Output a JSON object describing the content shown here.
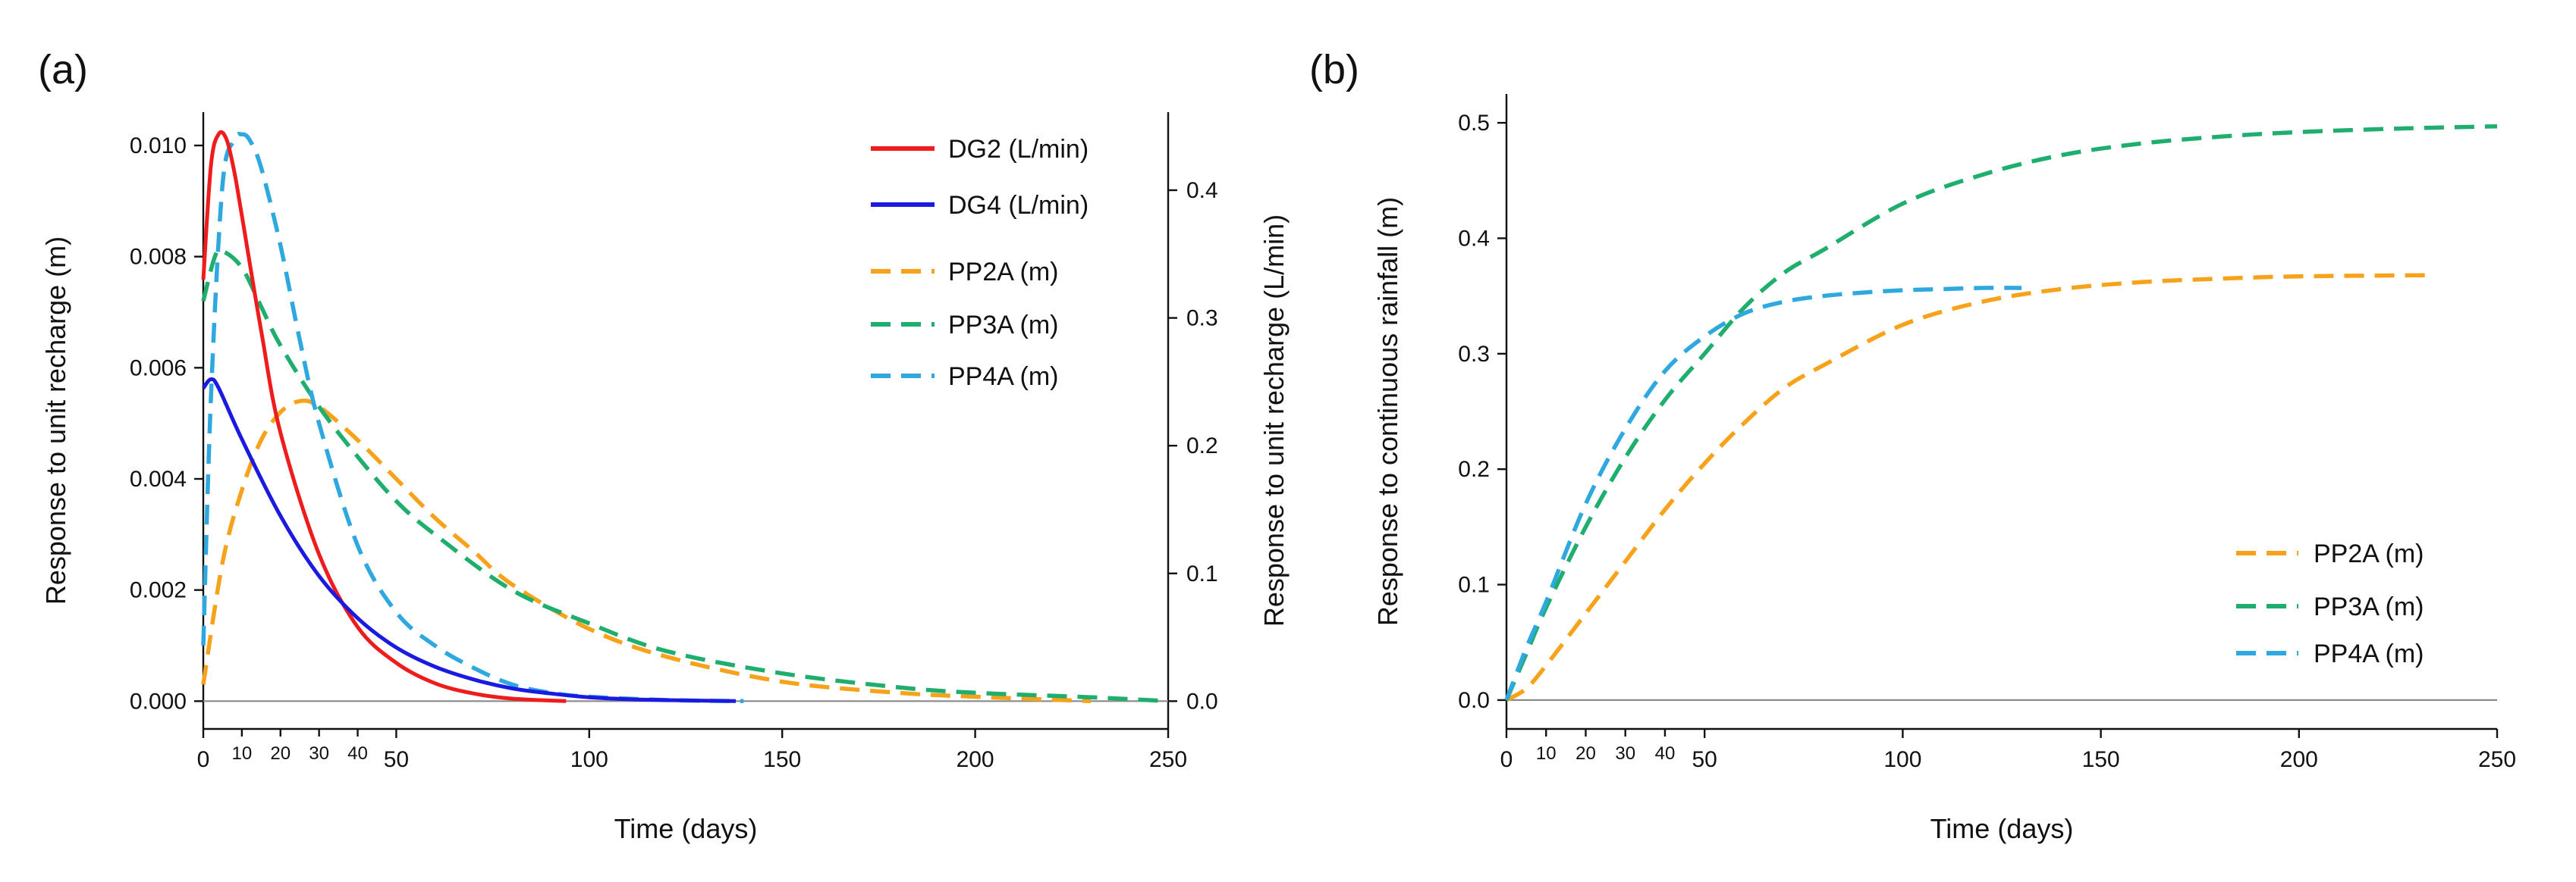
{
  "chart_data": [
    {
      "panel_label": "(a)",
      "type": "line",
      "xlabel": "Time (days)",
      "ylabel": "Response to unit recharge (m)",
      "y2label": "Response to unit recharge (L/min)",
      "xlim": [
        0,
        250
      ],
      "ylim": [
        -0.0005,
        0.0106
      ],
      "y2lim": [
        -0.02175,
        0.4611
      ],
      "xticks": [
        0,
        50,
        100,
        150,
        200,
        250
      ],
      "xticks_minor": [
        10,
        20,
        30,
        40
      ],
      "yticks": [
        0.0,
        0.002,
        0.004,
        0.006,
        0.008,
        0.01
      ],
      "ytick_labels": [
        "0.000",
        "0.002",
        "0.004",
        "0.006",
        "0.008",
        "0.010"
      ],
      "y2ticks": [
        0.0,
        0.1,
        0.2,
        0.3,
        0.4
      ],
      "y2tick_labels": [
        "0.0",
        "0.1",
        "0.2",
        "0.3",
        "0.4"
      ],
      "legend_position": "top-right",
      "series": [
        {
          "name": "DG2 (L/min)",
          "axis": "right",
          "color": "#ee1c1c",
          "dash": "solid",
          "x": [
            0,
            2,
            4,
            6,
            8,
            10,
            15,
            20,
            30,
            40,
            50,
            60,
            70,
            80,
            94
          ],
          "y": [
            0.33,
            0.42,
            0.444,
            0.44,
            0.415,
            0.38,
            0.29,
            0.21,
            0.115,
            0.058,
            0.03,
            0.014,
            0.006,
            0.002,
            0.0
          ]
        },
        {
          "name": "DG4 (L/min)",
          "axis": "right",
          "color": "#1a1ae0",
          "dash": "solid",
          "x": [
            0,
            2,
            4,
            10,
            20,
            30,
            40,
            50,
            60,
            70,
            80,
            90,
            100,
            110,
            120,
            138
          ],
          "y": [
            0.245,
            0.252,
            0.245,
            0.205,
            0.145,
            0.098,
            0.065,
            0.042,
            0.027,
            0.017,
            0.01,
            0.006,
            0.003,
            0.0015,
            0.0008,
            0.0
          ]
        },
        {
          "name": "PP2A (m)",
          "axis": "left",
          "color": "#f7a21b",
          "dash": "dashed",
          "x": [
            0,
            5,
            10,
            15,
            20,
            25,
            30,
            40,
            50,
            60,
            70,
            80,
            100,
            120,
            150,
            180,
            200,
            230
          ],
          "y": [
            0.0003,
            0.0025,
            0.0038,
            0.0047,
            0.0052,
            0.0054,
            0.0053,
            0.0047,
            0.004,
            0.0033,
            0.0027,
            0.0021,
            0.0013,
            0.0008,
            0.00035,
            0.00015,
            8e-05,
            0.0
          ]
        },
        {
          "name": "PP3A (m)",
          "axis": "left",
          "color": "#1fae6e",
          "dash": "dashed",
          "x": [
            0,
            3,
            5,
            10,
            15,
            20,
            30,
            40,
            50,
            60,
            80,
            100,
            120,
            150,
            180,
            200,
            230,
            250
          ],
          "y": [
            0.0072,
            0.008,
            0.0081,
            0.0078,
            0.0071,
            0.0064,
            0.0053,
            0.0044,
            0.0036,
            0.003,
            0.002,
            0.0014,
            0.0009,
            0.0005,
            0.00025,
            0.00015,
            7e-05,
            0.0
          ]
        },
        {
          "name": "PP4A (m)",
          "axis": "left",
          "color": "#2ea8df",
          "dash": "dashed",
          "x": [
            0,
            2,
            5,
            8,
            10,
            12,
            15,
            20,
            25,
            30,
            40,
            50,
            60,
            70,
            80,
            90,
            100,
            120,
            140
          ],
          "y": [
            0.001,
            0.0055,
            0.0093,
            0.0101,
            0.0102,
            0.0101,
            0.0096,
            0.0082,
            0.0065,
            0.005,
            0.0028,
            0.0016,
            0.001,
            0.0006,
            0.0003,
            0.00015,
            8e-05,
            2e-05,
            0.0
          ]
        }
      ]
    },
    {
      "panel_label": "(b)",
      "type": "line",
      "xlabel": "Time (days)",
      "ylabel": "Response to continuous rainfall (m)",
      "xlim": [
        0,
        250
      ],
      "ylim": [
        -0.025,
        0.525
      ],
      "xticks": [
        0,
        50,
        100,
        150,
        200,
        250
      ],
      "xticks_minor": [
        10,
        20,
        30,
        40
      ],
      "yticks": [
        0.0,
        0.1,
        0.2,
        0.3,
        0.4,
        0.5
      ],
      "ytick_labels": [
        "0.0",
        "0.1",
        "0.2",
        "0.3",
        "0.4",
        "0.5"
      ],
      "legend_position": "bottom-right",
      "series": [
        {
          "name": "PP2A (m)",
          "color": "#f7a21b",
          "dash": "dashed",
          "x": [
            0,
            5,
            10,
            20,
            30,
            40,
            50,
            60,
            70,
            80,
            100,
            120,
            140,
            160,
            180,
            200,
            232
          ],
          "y": [
            0.0,
            0.01,
            0.03,
            0.075,
            0.12,
            0.165,
            0.205,
            0.24,
            0.27,
            0.29,
            0.325,
            0.345,
            0.356,
            0.362,
            0.365,
            0.367,
            0.368
          ]
        },
        {
          "name": "PP3A (m)",
          "color": "#1fae6e",
          "dash": "dashed",
          "x": [
            0,
            5,
            10,
            20,
            30,
            40,
            50,
            60,
            70,
            80,
            100,
            120,
            140,
            160,
            180,
            200,
            225,
            250
          ],
          "y": [
            0.0,
            0.04,
            0.08,
            0.15,
            0.21,
            0.26,
            0.3,
            0.34,
            0.37,
            0.39,
            0.43,
            0.455,
            0.472,
            0.482,
            0.488,
            0.492,
            0.495,
            0.497
          ]
        },
        {
          "name": "PP4A (m)",
          "color": "#2ea8df",
          "dash": "dashed",
          "x": [
            0,
            5,
            10,
            20,
            30,
            40,
            50,
            60,
            70,
            80,
            90,
            100,
            110,
            120,
            130
          ],
          "y": [
            0.0,
            0.045,
            0.085,
            0.17,
            0.235,
            0.285,
            0.315,
            0.335,
            0.345,
            0.35,
            0.353,
            0.355,
            0.356,
            0.357,
            0.357
          ]
        }
      ]
    }
  ]
}
